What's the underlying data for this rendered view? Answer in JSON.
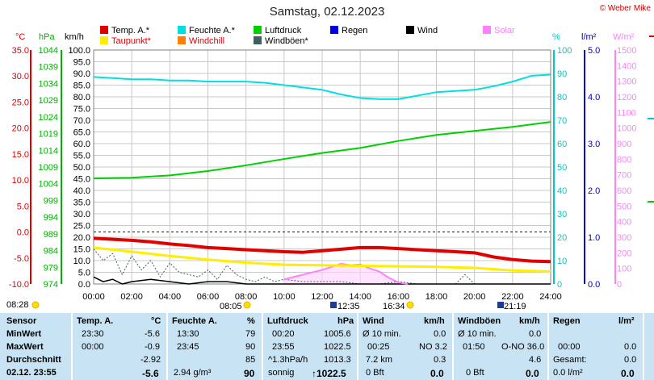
{
  "title": "Samstag, 02.12.2023",
  "copyright": "© Weber Mike",
  "legend": [
    {
      "label": "Temp. A.*",
      "color": "#e00000"
    },
    {
      "label": "Feuchte A.*",
      "color": "#00e0e0"
    },
    {
      "label": "Luftdruck",
      "color": "#00d000"
    },
    {
      "label": "Regen",
      "color": "#0000e0"
    },
    {
      "label": "Wind",
      "color": "#000000"
    },
    {
      "label": "Solar",
      "color": "#ff80ff"
    },
    {
      "label": "Taupunkt*",
      "color": "#ffee00"
    },
    {
      "label": "Windchill",
      "color": "#ff8000"
    },
    {
      "label": "Windböen*",
      "color": "#406060"
    }
  ],
  "units": {
    "temp": "°C",
    "pressure": "hPa",
    "wind": "km/h",
    "humidity": "%",
    "rain": "l/m²",
    "solar": "W/m²"
  },
  "chart_data": {
    "type": "line",
    "x_ticks": [
      "00:00",
      "02:00",
      "04:00",
      "06:00",
      "08:00",
      "10:00",
      "12:00",
      "14:00",
      "16:00",
      "18:00",
      "20:00",
      "22:00",
      "24:00"
    ],
    "axes": {
      "temp": {
        "ticks": [
          "35.0",
          "30.0",
          "25.0",
          "20.0",
          "15.0",
          "10.0",
          "5.0",
          "0.0",
          "-5.0",
          "-10.0"
        ],
        "range": [
          -10,
          35
        ],
        "color": "#e00000"
      },
      "pressure": {
        "ticks": [
          "1044",
          "1039",
          "1034",
          "1029",
          "1024",
          "1019",
          "1014",
          "1009",
          "1004",
          "999",
          "994",
          "989",
          "984",
          "979",
          "974"
        ],
        "range": [
          974,
          1044
        ],
        "color": "#00b000"
      },
      "wind": {
        "ticks": [
          "100.0",
          "95.0",
          "90.0",
          "85.0",
          "80.0",
          "75.0",
          "70.0",
          "65.0",
          "60.0",
          "55.0",
          "50.0",
          "45.0",
          "40.0",
          "35.0",
          "30.0",
          "25.0",
          "20.0",
          "15.0",
          "10.0",
          "5.0",
          "0.0"
        ],
        "range": [
          0,
          100
        ],
        "color": "#000000"
      },
      "humidity": {
        "ticks": [
          "100",
          "90",
          "80",
          "70",
          "60",
          "50",
          "40",
          "30",
          "20",
          "10",
          "0"
        ],
        "range": [
          0,
          100
        ],
        "color": "#00c8c8"
      },
      "rain": {
        "ticks": [
          "5.0",
          "4.0",
          "3.0",
          "2.0",
          "1.0",
          "0.0"
        ],
        "range": [
          0,
          5
        ],
        "color": "#0000c0"
      },
      "solar": {
        "ticks": [
          "1500",
          "1400",
          "1300",
          "1200",
          "1100",
          "1000",
          "900",
          "800",
          "700",
          "600",
          "500",
          "400",
          "300",
          "200",
          "100",
          "0"
        ],
        "range": [
          0,
          1500
        ],
        "color": "#ff80ff"
      }
    },
    "series": [
      {
        "name": "Temp. A.*",
        "axis": "temp",
        "color": "#e00000",
        "width": 4,
        "x": [
          0,
          1,
          2,
          3,
          4,
          5,
          6,
          7,
          8,
          9,
          10,
          11,
          12,
          13,
          14,
          15,
          16,
          17,
          18,
          19,
          20,
          21,
          22,
          23,
          24
        ],
        "y": [
          -1.2,
          -1.4,
          -1.6,
          -1.9,
          -2.3,
          -2.6,
          -3.0,
          -3.2,
          -3.4,
          -3.6,
          -3.8,
          -3.9,
          -3.6,
          -3.3,
          -3.0,
          -3.0,
          -3.2,
          -3.4,
          -3.6,
          -3.8,
          -4.0,
          -4.8,
          -5.3,
          -5.6,
          -5.7
        ]
      },
      {
        "name": "Taupunkt*",
        "axis": "temp",
        "color": "#ffee00",
        "width": 3,
        "x": [
          0,
          2,
          4,
          6,
          8,
          10,
          12,
          14,
          16,
          18,
          20,
          22,
          24
        ],
        "y": [
          -3.0,
          -3.8,
          -4.6,
          -5.3,
          -5.9,
          -6.3,
          -6.4,
          -6.5,
          -6.6,
          -6.7,
          -6.9,
          -7.4,
          -7.6
        ]
      },
      {
        "name": "Feuchte A.*",
        "axis": "humidity",
        "color": "#00e0e0",
        "width": 2,
        "x": [
          0,
          1,
          2,
          3,
          4,
          5,
          6,
          7,
          8,
          9,
          10,
          11,
          12,
          13,
          14,
          15,
          16,
          17,
          18,
          19,
          20,
          21,
          22,
          23,
          24
        ],
        "y": [
          88.5,
          88,
          87.5,
          87.5,
          87,
          87,
          86.5,
          86.5,
          86.5,
          86,
          85,
          84,
          83,
          81,
          79.5,
          79,
          79,
          80.5,
          82,
          82.5,
          83,
          84.5,
          86.5,
          89,
          89.5
        ]
      },
      {
        "name": "Luftdruck",
        "axis": "pressure",
        "color": "#00d000",
        "width": 2,
        "x": [
          0,
          2,
          4,
          6,
          8,
          10,
          12,
          14,
          16,
          18,
          20,
          22,
          24
        ],
        "y": [
          1005.6,
          1005.8,
          1006.5,
          1007.8,
          1009.5,
          1011.4,
          1013.2,
          1014.7,
          1016.8,
          1018.6,
          1019.8,
          1021.0,
          1022.5
        ]
      },
      {
        "name": "Solar",
        "axis": "solar",
        "color": "#ff80ff",
        "width": 2,
        "x": [
          10,
          11,
          12,
          12.5,
          13,
          13.5,
          14,
          14.5,
          15,
          15.5,
          16,
          16.5
        ],
        "y": [
          30,
          60,
          90,
          110,
          130,
          120,
          125,
          100,
          80,
          40,
          10,
          0
        ]
      },
      {
        "name": "Windböen*",
        "axis": "wind",
        "color": "#406060",
        "width": 1,
        "dash": "2,2",
        "x": [
          0,
          0.5,
          1,
          1.5,
          2,
          2.5,
          3,
          3.5,
          4,
          4.5,
          5,
          5.5,
          6,
          6.5,
          7,
          7.5,
          8,
          8.5,
          9,
          9.5,
          10,
          11,
          12,
          13,
          14,
          15,
          16,
          17,
          18,
          19,
          19.5,
          20,
          21,
          22,
          23,
          24
        ],
        "y": [
          15,
          10,
          13,
          4,
          12,
          6,
          10,
          3,
          9,
          5,
          4,
          3,
          6,
          2,
          8,
          4,
          2,
          1,
          3,
          1,
          2,
          1,
          1,
          1,
          0,
          0,
          1,
          0,
          0,
          0,
          4,
          0,
          0,
          0,
          0,
          0
        ]
      },
      {
        "name": "Wind",
        "axis": "wind",
        "color": "#000000",
        "width": 1.5,
        "x": [
          0,
          0.5,
          1,
          1.5,
          2,
          3,
          4,
          5,
          6,
          7,
          8,
          9,
          10,
          11,
          12,
          13,
          14,
          15,
          16,
          17,
          18,
          19,
          20,
          21,
          22,
          23,
          24
        ],
        "y": [
          3,
          1,
          2,
          0,
          1,
          2,
          1,
          0,
          1,
          1,
          0,
          0,
          0,
          0,
          0,
          0,
          0,
          0,
          0,
          0,
          0,
          0,
          0,
          0,
          0,
          0,
          0
        ]
      }
    ]
  },
  "sun": {
    "left": "08:28",
    "sunrise": "08:05",
    "noon": "12:35",
    "moon": "16:34",
    "sunset": "21:19"
  },
  "table": {
    "row_labels": [
      "Sensor",
      "MinWert",
      "MaxWert",
      "Durchschnitt",
      "02.12. 23:55"
    ],
    "temp": {
      "header": "Temp. A.",
      "unit": "°C",
      "min_time": "23:30",
      "min": "-5.6",
      "max_time": "00:00",
      "max": "-0.9",
      "avg": "-2.92",
      "current": "-5.6"
    },
    "hum": {
      "header": "Feuchte A.",
      "unit": "%",
      "min_time": "13:30",
      "min": "79",
      "max_time": "23:45",
      "max": "90",
      "avg": "85",
      "abs": "2.94 g/m³",
      "current": "90"
    },
    "press": {
      "header": "Luftdruck",
      "unit": "hPa",
      "min_time": "00:20",
      "min": "1005.6",
      "max_time": "23:55",
      "max": "1022.5",
      "trend": "^1.3hPa/h",
      "avg": "1013.3",
      "weather": "sonnig",
      "current": "↑1022.5"
    },
    "wind": {
      "header": "Wind",
      "unit": "km/h",
      "row1_label": "Ø 10 min.",
      "row1": "0.0",
      "row2_time": "00:25",
      "row2": "NO 3.2",
      "row3_label": "7.2 km",
      "row3": "0.3",
      "row4_label": "0 Bft",
      "row4": "0.0"
    },
    "gust": {
      "header": "Windböen",
      "unit": "km/h",
      "row1_label": "Ø 10 min.",
      "row1": "0.0",
      "row2_time": "01:50",
      "row2": "O-NO 36.0",
      "row3": "4.6",
      "row4_label": "0 Bft",
      "row4": "0.0"
    },
    "rain": {
      "header": "Regen",
      "unit": "l/m²",
      "row2_time": "00:00",
      "row2": "0.0",
      "row3_label": "Gesamt:",
      "row3": "0.0",
      "row4_label": "0.0 l/m²",
      "row4": "0.0"
    }
  }
}
